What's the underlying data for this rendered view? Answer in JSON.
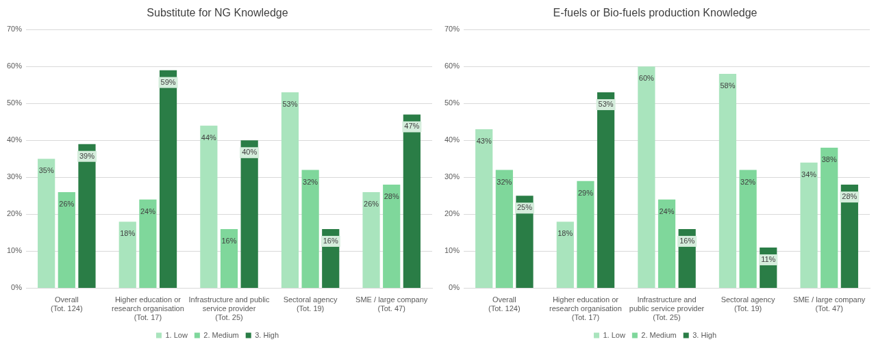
{
  "chart_data": [
    {
      "type": "bar",
      "title": "Substitute for NG Knowledge",
      "categories": [
        "Overall\n(Tot. 124)",
        "Higher education or\nresearch organisation\n(Tot. 17)",
        "Infrastructure and public\nservice provider\n(Tot. 25)",
        "Sectoral agency\n(Tot. 19)",
        "SME / large company\n(Tot. 47)"
      ],
      "series": [
        {
          "name": "1. Low",
          "color": "#a9e4bd",
          "values": [
            35,
            18,
            44,
            53,
            26
          ],
          "value_labels": [
            "35%",
            "18%",
            "44%",
            "53%",
            "26%"
          ]
        },
        {
          "name": "2. Medium",
          "color": "#7fd79b",
          "values": [
            26,
            24,
            16,
            32,
            28
          ],
          "value_labels": [
            "26%",
            "24%",
            "16%",
            "32%",
            "28%"
          ]
        },
        {
          "name": "3. High",
          "color": "#2a7d46",
          "values": [
            39,
            59,
            40,
            16,
            47
          ],
          "value_labels": [
            "39%",
            "59%",
            "40%",
            "16%",
            "47%"
          ]
        }
      ],
      "ylim": [
        0,
        70
      ],
      "yticks": [
        {
          "value": 0,
          "label": "0%"
        },
        {
          "value": 10,
          "label": "10%"
        },
        {
          "value": 20,
          "label": "20%"
        },
        {
          "value": 30,
          "label": "30%"
        },
        {
          "value": 40,
          "label": "40%"
        },
        {
          "value": 50,
          "label": "50%"
        },
        {
          "value": 60,
          "label": "60%"
        },
        {
          "value": 70,
          "label": "70%"
        }
      ],
      "grid": "y",
      "legend": "bottom"
    },
    {
      "type": "bar",
      "title": "E-fuels or Bio-fuels production Knowledge",
      "categories": [
        "Overall\n(Tot. 124)",
        "Higher education or\nresearch organisation\n(Tot. 17)",
        "Infrastructure and\npublic service provider\n(Tot. 25)",
        "Sectoral agency\n(Tot. 19)",
        "SME / large company\n(Tot. 47)"
      ],
      "series": [
        {
          "name": "1. Low",
          "color": "#a9e4bd",
          "values": [
            43,
            18,
            60,
            58,
            34
          ],
          "value_labels": [
            "43%",
            "18%",
            "60%",
            "58%",
            "34%"
          ]
        },
        {
          "name": "2. Medium",
          "color": "#7fd79b",
          "values": [
            32,
            29,
            24,
            32,
            38
          ],
          "value_labels": [
            "32%",
            "29%",
            "24%",
            "32%",
            "38%"
          ]
        },
        {
          "name": "3. High",
          "color": "#2a7d46",
          "values": [
            25,
            53,
            16,
            11,
            28
          ],
          "value_labels": [
            "25%",
            "53%",
            "16%",
            "11%",
            "28%"
          ]
        }
      ],
      "ylim": [
        0,
        70
      ],
      "yticks": [
        {
          "value": 0,
          "label": "0%"
        },
        {
          "value": 10,
          "label": "10%"
        },
        {
          "value": 20,
          "label": "20%"
        },
        {
          "value": 30,
          "label": "30%"
        },
        {
          "value": 40,
          "label": "40%"
        },
        {
          "value": 50,
          "label": "50%"
        },
        {
          "value": 60,
          "label": "60%"
        },
        {
          "value": 70,
          "label": "70%"
        }
      ],
      "grid": "y",
      "legend": "bottom"
    }
  ]
}
